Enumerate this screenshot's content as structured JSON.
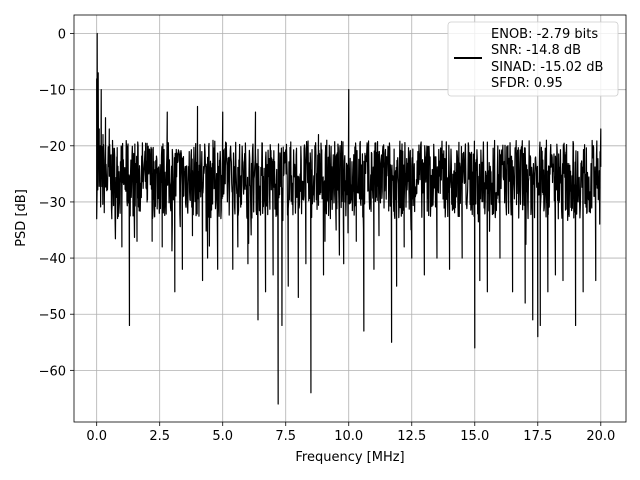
{
  "chart_data": {
    "type": "line",
    "xlabel": "Frequency [MHz]",
    "ylabel": "PSD [dB]",
    "xlim": [
      -0.9,
      21.0
    ],
    "ylim": [
      -69.2,
      3.3
    ],
    "xticks": [
      0.0,
      2.5,
      5.0,
      7.5,
      10.0,
      12.5,
      15.0,
      17.5,
      20.0
    ],
    "xtick_labels": [
      "0.0",
      "2.5",
      "5.0",
      "7.5",
      "10.0",
      "12.5",
      "15.0",
      "17.5",
      "20.0"
    ],
    "yticks": [
      0,
      -10,
      -20,
      -30,
      -40,
      -50,
      -60
    ],
    "ytick_labels": [
      "0",
      "−10",
      "−20",
      "−30",
      "−40",
      "−50",
      "−60"
    ],
    "grid": true,
    "legend_position": "top-right",
    "legend_lines": [
      "ENOB: -2.79 bits",
      "SNR: -14.8 dB",
      "SINAD: -15.02 dB",
      "SFDR: 0.95"
    ],
    "series": [
      {
        "color": "#000000",
        "noise_band": [
          -33,
          -19
        ],
        "points": [
          [
            0.0,
            -8
          ],
          [
            0.02,
            0
          ],
          [
            0.04,
            -14
          ],
          [
            0.06,
            -7
          ],
          [
            0.1,
            -17
          ],
          [
            0.14,
            -22
          ],
          [
            0.18,
            -10
          ],
          [
            0.2,
            -24
          ],
          [
            0.25,
            -18
          ],
          [
            0.3,
            -31
          ],
          [
            0.35,
            -15
          ],
          [
            0.4,
            -28
          ],
          [
            0.5,
            -17
          ],
          [
            0.6,
            -33
          ],
          [
            0.8,
            -22
          ],
          [
            1.0,
            -38
          ],
          [
            1.2,
            -20
          ],
          [
            1.3,
            -52
          ],
          [
            1.4,
            -24
          ],
          [
            1.6,
            -37
          ],
          [
            2.0,
            -30
          ],
          [
            2.2,
            -37
          ],
          [
            2.5,
            -27
          ],
          [
            2.6,
            -38
          ],
          [
            2.8,
            -14
          ],
          [
            3.0,
            -34
          ],
          [
            3.1,
            -46
          ],
          [
            3.4,
            -42
          ],
          [
            3.5,
            -25
          ],
          [
            3.8,
            -36
          ],
          [
            4.0,
            -13
          ],
          [
            4.2,
            -44
          ],
          [
            4.4,
            -40
          ],
          [
            4.8,
            -42
          ],
          [
            5.0,
            -14
          ],
          [
            5.4,
            -42
          ],
          [
            5.6,
            -38
          ],
          [
            6.0,
            -41
          ],
          [
            6.3,
            -14
          ],
          [
            6.4,
            -51
          ],
          [
            6.7,
            -46
          ],
          [
            7.0,
            -43
          ],
          [
            7.2,
            -66
          ],
          [
            7.35,
            -52
          ],
          [
            7.6,
            -45
          ],
          [
            8.0,
            -47
          ],
          [
            8.3,
            -41
          ],
          [
            8.5,
            -64
          ],
          [
            8.8,
            -18
          ],
          [
            9.0,
            -43
          ],
          [
            9.5,
            -35
          ],
          [
            9.8,
            -41
          ],
          [
            10.0,
            -10
          ],
          [
            10.3,
            -37
          ],
          [
            10.6,
            -53
          ],
          [
            11.0,
            -42
          ],
          [
            11.2,
            -36
          ],
          [
            11.7,
            -55
          ],
          [
            11.9,
            -45
          ],
          [
            12.2,
            -38
          ],
          [
            12.5,
            -40
          ],
          [
            13.0,
            -43
          ],
          [
            13.5,
            -40
          ],
          [
            14.0,
            -42
          ],
          [
            14.5,
            -40
          ],
          [
            15.0,
            -56
          ],
          [
            15.2,
            -44
          ],
          [
            15.5,
            -46
          ],
          [
            16.0,
            -40
          ],
          [
            16.5,
            -46
          ],
          [
            17.0,
            -48
          ],
          [
            17.3,
            -51
          ],
          [
            17.5,
            -54
          ],
          [
            17.6,
            -52
          ],
          [
            17.9,
            -46
          ],
          [
            18.2,
            -43
          ],
          [
            18.5,
            -44
          ],
          [
            19.0,
            -52
          ],
          [
            19.3,
            -46
          ],
          [
            19.8,
            -44
          ],
          [
            20.0,
            -17
          ]
        ]
      }
    ]
  }
}
